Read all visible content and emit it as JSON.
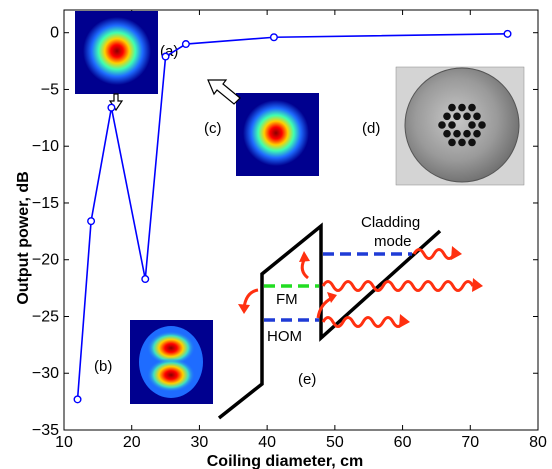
{
  "chart_data": {
    "type": "line",
    "xlabel": "Coiling diameter, cm",
    "ylabel": "Output power, dB",
    "xlim": [
      10,
      80
    ],
    "ylim": [
      -35,
      2
    ],
    "xticks": [
      10,
      20,
      30,
      40,
      50,
      60,
      70,
      80
    ],
    "yticks": [
      0,
      -5,
      -10,
      -15,
      -20,
      -25,
      -30,
      -35
    ],
    "grid": false,
    "series": [
      {
        "color": "#0000ff",
        "marker": "circle",
        "x": [
          12,
          14,
          17,
          22,
          25,
          28,
          41,
          75.5
        ],
        "y": [
          -32.3,
          -16.6,
          -6.6,
          -21.7,
          -2.1,
          -1.0,
          -0.4,
          -0.1
        ]
      }
    ],
    "annotations": {
      "a": "(a)",
      "b": "(b)",
      "c": "(c)",
      "d": "(d)",
      "e": "(e)",
      "cladding_line1": "Cladding",
      "cladding_line2": "mode",
      "fm": "FM",
      "hom": "HOM"
    }
  }
}
